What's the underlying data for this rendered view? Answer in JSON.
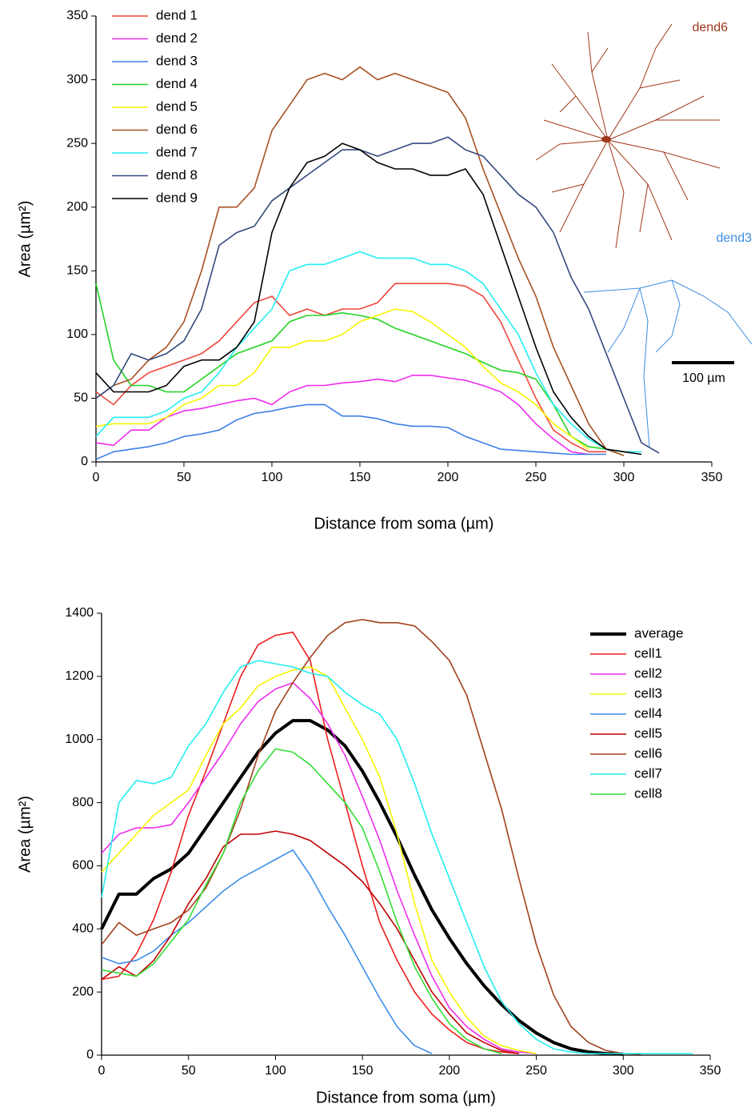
{
  "chart_data": [
    {
      "type": "line",
      "xlabel": "Distance from soma (µm)",
      "ylabel": "Area (µm²)",
      "x": [
        0,
        10,
        20,
        30,
        40,
        50,
        60,
        70,
        80,
        90,
        100,
        110,
        120,
        130,
        140,
        150,
        160,
        170,
        180,
        190,
        200,
        210,
        220,
        230,
        240,
        250,
        260,
        270,
        280,
        290,
        300,
        310,
        320,
        330,
        340
      ],
      "xlim": [
        0,
        350
      ],
      "xticks": [
        0,
        50,
        100,
        150,
        200,
        250,
        300,
        350
      ],
      "ylim": [
        0,
        350
      ],
      "yticks": [
        0,
        50,
        100,
        150,
        200,
        250,
        300,
        350
      ],
      "legend": "upper left",
      "series": [
        {
          "name": "dend 1",
          "color": "#f0463c",
          "values": [
            55,
            45,
            60,
            70,
            75,
            80,
            85,
            95,
            110,
            125,
            130,
            115,
            120,
            115,
            120,
            120,
            125,
            140,
            140,
            140,
            140,
            138,
            130,
            110,
            80,
            50,
            25,
            15,
            8,
            8,
            null,
            null,
            null,
            null,
            null
          ]
        },
        {
          "name": "dend 2",
          "color": "#ee2cee",
          "values": [
            15,
            13,
            25,
            25,
            35,
            40,
            42,
            45,
            48,
            50,
            45,
            55,
            60,
            60,
            62,
            63,
            65,
            63,
            68,
            68,
            66,
            64,
            60,
            55,
            45,
            30,
            18,
            8,
            6,
            null,
            null,
            null,
            null,
            null,
            null
          ]
        },
        {
          "name": "dend 3",
          "color": "#3c7ee6",
          "values": [
            2,
            8,
            10,
            12,
            15,
            20,
            22,
            25,
            33,
            38,
            40,
            43,
            45,
            45,
            36,
            36,
            34,
            30,
            28,
            28,
            27,
            20,
            15,
            10,
            9,
            8,
            7,
            6,
            6,
            6,
            null,
            null,
            null,
            null,
            null
          ]
        },
        {
          "name": "dend 4",
          "color": "#22d322",
          "values": [
            140,
            80,
            60,
            60,
            55,
            55,
            65,
            75,
            85,
            90,
            95,
            110,
            115,
            115,
            117,
            115,
            112,
            105,
            100,
            95,
            90,
            85,
            78,
            72,
            70,
            65,
            45,
            20,
            12,
            10,
            5,
            null,
            null,
            null,
            null
          ]
        },
        {
          "name": "dend 5",
          "color": "#f5f500",
          "values": [
            28,
            30,
            30,
            30,
            35,
            45,
            50,
            60,
            60,
            70,
            90,
            90,
            95,
            95,
            100,
            110,
            115,
            120,
            118,
            110,
            100,
            90,
            75,
            62,
            55,
            45,
            30,
            20,
            10,
            null,
            null,
            null,
            null,
            null,
            null
          ]
        },
        {
          "name": "dend 6",
          "color": "#a65121",
          "values": [
            50,
            60,
            65,
            80,
            90,
            110,
            150,
            200,
            200,
            215,
            260,
            280,
            300,
            305,
            300,
            310,
            300,
            305,
            300,
            295,
            290,
            270,
            230,
            195,
            160,
            130,
            90,
            60,
            30,
            10,
            5,
            null,
            null,
            null,
            null
          ]
        },
        {
          "name": "dend 7",
          "color": "#22eef0",
          "values": [
            20,
            35,
            35,
            35,
            40,
            50,
            55,
            70,
            90,
            105,
            120,
            150,
            155,
            155,
            160,
            165,
            160,
            160,
            160,
            155,
            155,
            150,
            140,
            120,
            100,
            70,
            45,
            30,
            18,
            10,
            8,
            8,
            null,
            null,
            null
          ]
        },
        {
          "name": "dend 8",
          "color": "#344a7e",
          "values": [
            50,
            60,
            85,
            80,
            85,
            95,
            120,
            170,
            180,
            185,
            205,
            215,
            225,
            235,
            245,
            245,
            240,
            245,
            250,
            250,
            255,
            245,
            240,
            225,
            210,
            200,
            180,
            145,
            120,
            85,
            50,
            15,
            7,
            null,
            null
          ]
        },
        {
          "name": "dend 9",
          "color": "#000000",
          "values": [
            70,
            55,
            55,
            55,
            60,
            75,
            80,
            80,
            90,
            110,
            180,
            215,
            235,
            240,
            250,
            245,
            235,
            230,
            230,
            225,
            225,
            230,
            210,
            170,
            130,
            90,
            55,
            35,
            20,
            10,
            8,
            6,
            null,
            null,
            null
          ]
        }
      ],
      "annotations": [
        {
          "text": "dend6",
          "color": "#a0381b"
        },
        {
          "text": "dend3",
          "color": "#3a8ee0"
        },
        {
          "text": "100 µm",
          "color": "#000000"
        }
      ]
    },
    {
      "type": "line",
      "xlabel": "Distance from soma (µm)",
      "ylabel": "Area (µm²)",
      "x": [
        0,
        10,
        20,
        30,
        40,
        50,
        60,
        70,
        80,
        90,
        100,
        110,
        120,
        130,
        140,
        150,
        160,
        170,
        180,
        190,
        200,
        210,
        220,
        230,
        240,
        250,
        260,
        270,
        280,
        290,
        300,
        310,
        320,
        330,
        340
      ],
      "xlim": [
        0,
        350
      ],
      "xticks": [
        0,
        50,
        100,
        150,
        200,
        250,
        300,
        350
      ],
      "ylim": [
        0,
        1400
      ],
      "yticks": [
        0,
        200,
        400,
        600,
        800,
        1000,
        1200,
        1400
      ],
      "legend": "upper right",
      "series": [
        {
          "name": "average",
          "color": "#000000",
          "width": 4,
          "values": [
            400,
            510,
            510,
            560,
            590,
            640,
            720,
            800,
            880,
            960,
            1020,
            1060,
            1060,
            1030,
            980,
            900,
            800,
            690,
            570,
            460,
            370,
            290,
            220,
            160,
            110,
            70,
            40,
            20,
            10,
            5,
            3,
            null,
            null,
            null,
            null
          ]
        },
        {
          "name": "cell1",
          "color": "#ee1c1c",
          "values": [
            240,
            250,
            320,
            430,
            580,
            760,
            900,
            1050,
            1200,
            1300,
            1330,
            1340,
            1250,
            1000,
            800,
            600,
            420,
            300,
            200,
            130,
            80,
            40,
            20,
            10,
            5,
            null,
            null,
            null,
            null,
            null,
            null,
            null,
            null,
            null,
            null
          ]
        },
        {
          "name": "cell2",
          "color": "#ee2cee",
          "values": [
            640,
            700,
            720,
            720,
            730,
            800,
            880,
            960,
            1050,
            1120,
            1160,
            1180,
            1130,
            1050,
            950,
            820,
            680,
            520,
            380,
            250,
            150,
            90,
            50,
            20,
            10,
            5,
            null,
            null,
            null,
            null,
            null,
            null,
            null,
            null,
            null
          ]
        },
        {
          "name": "cell3",
          "color": "#f5f500",
          "values": [
            580,
            640,
            700,
            760,
            800,
            840,
            950,
            1050,
            1100,
            1170,
            1200,
            1220,
            1230,
            1200,
            1100,
            1000,
            880,
            700,
            480,
            300,
            200,
            120,
            60,
            30,
            15,
            5,
            null,
            null,
            null,
            null,
            null,
            null,
            null,
            null,
            null
          ]
        },
        {
          "name": "cell4",
          "color": "#3c8ee6",
          "values": [
            310,
            290,
            300,
            330,
            380,
            420,
            470,
            520,
            560,
            590,
            620,
            650,
            570,
            470,
            380,
            280,
            180,
            90,
            30,
            5,
            null,
            null,
            null,
            null,
            null,
            null,
            null,
            null,
            null,
            null,
            null,
            null,
            null,
            null,
            null
          ]
        },
        {
          "name": "cell5",
          "color": "#c00000",
          "values": [
            240,
            280,
            250,
            300,
            380,
            480,
            560,
            660,
            700,
            700,
            710,
            700,
            680,
            640,
            600,
            550,
            480,
            400,
            300,
            200,
            130,
            70,
            40,
            15,
            5,
            null,
            null,
            null,
            null,
            null,
            null,
            null,
            null,
            null,
            null
          ]
        },
        {
          "name": "cell6",
          "color": "#a0421c",
          "values": [
            350,
            420,
            380,
            400,
            420,
            460,
            530,
            640,
            780,
            950,
            1090,
            1180,
            1260,
            1330,
            1370,
            1380,
            1370,
            1370,
            1360,
            1310,
            1250,
            1140,
            960,
            780,
            560,
            350,
            190,
            90,
            40,
            15,
            5,
            3,
            null,
            null,
            null
          ]
        },
        {
          "name": "cell7",
          "color": "#22eef0",
          "values": [
            500,
            800,
            870,
            860,
            880,
            980,
            1050,
            1150,
            1230,
            1250,
            1240,
            1230,
            1210,
            1200,
            1150,
            1110,
            1080,
            1000,
            860,
            700,
            560,
            420,
            280,
            170,
            100,
            50,
            20,
            10,
            5,
            5,
            5,
            5,
            5,
            5,
            5
          ]
        },
        {
          "name": "cell8",
          "color": "#33dd33",
          "values": [
            270,
            260,
            250,
            290,
            360,
            430,
            540,
            640,
            800,
            900,
            970,
            960,
            920,
            860,
            800,
            720,
            580,
            420,
            280,
            180,
            100,
            50,
            20,
            5,
            null,
            null,
            null,
            null,
            null,
            null,
            null,
            null,
            null,
            null,
            null
          ]
        }
      ]
    }
  ]
}
